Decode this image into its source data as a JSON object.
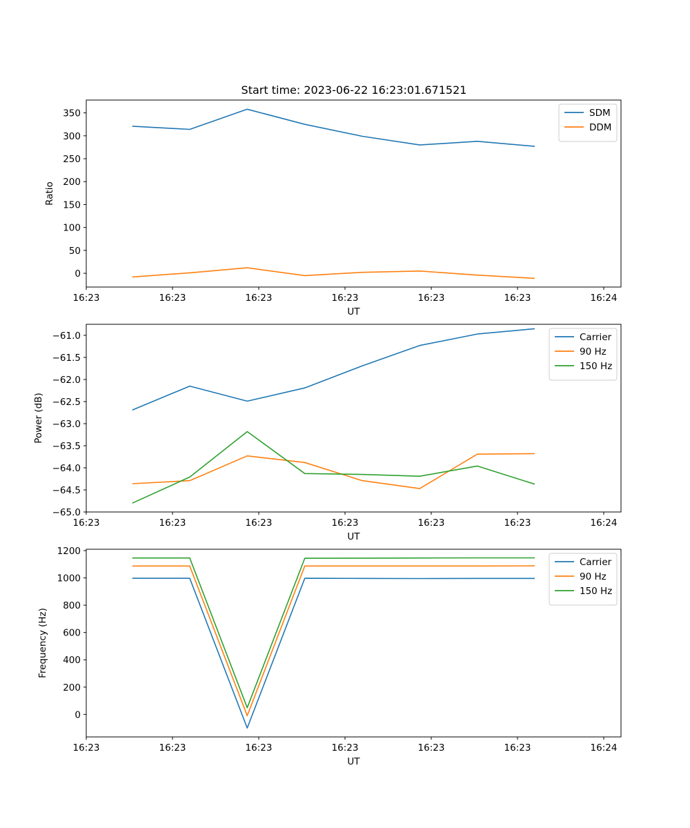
{
  "title": "Start time: 2023-06-22 16:23:01.671521",
  "chart_data": [
    {
      "type": "line",
      "title": "Start time: 2023-06-22 16:23:01.671521",
      "xlabel": "UT",
      "ylabel": "Ratio",
      "x": [
        1,
        2,
        3,
        4,
        5,
        6,
        7,
        8
      ],
      "xlim": [
        0.2,
        9.5
      ],
      "xticks": [
        0.2,
        1.7,
        3.2,
        4.7,
        6.2,
        7.7,
        9.2
      ],
      "xtick_labels": [
        "16:23",
        "16:23",
        "16:23",
        "16:23",
        "16:23",
        "16:23",
        "16:24"
      ],
      "ylim": [
        -30,
        378
      ],
      "yticks": [
        0,
        50,
        100,
        150,
        200,
        250,
        300,
        350
      ],
      "legend": "top-right",
      "series": [
        {
          "name": "SDM",
          "color": "#1f77b4",
          "values": [
            321,
            314,
            358,
            325,
            299,
            280,
            288,
            277
          ]
        },
        {
          "name": "DDM",
          "color": "#ff7f0e",
          "values": [
            -8,
            1,
            12,
            -5,
            2,
            5,
            -4,
            -11
          ]
        }
      ]
    },
    {
      "type": "line",
      "xlabel": "UT",
      "ylabel": "Power (dB)",
      "x": [
        1,
        2,
        3,
        4,
        5,
        6,
        7,
        8
      ],
      "xlim": [
        0.2,
        9.5
      ],
      "xticks": [
        0.2,
        1.7,
        3.2,
        4.7,
        6.2,
        7.7,
        9.2
      ],
      "xtick_labels": [
        "16:23",
        "16:23",
        "16:23",
        "16:23",
        "16:23",
        "16:23",
        "16:24"
      ],
      "ylim": [
        -65.0,
        -60.75
      ],
      "yticks": [
        -65.0,
        -64.5,
        -64.0,
        -63.5,
        -63.0,
        -62.5,
        -62.0,
        -61.5,
        -61.0
      ],
      "ytick_labels": [
        "−65.0",
        "−64.5",
        "−64.0",
        "−63.5",
        "−63.0",
        "−62.5",
        "−62.0",
        "−61.5",
        "−61.0"
      ],
      "legend": "top-right",
      "series": [
        {
          "name": "Carrier",
          "color": "#1f77b4",
          "values": [
            -62.69,
            -62.15,
            -62.49,
            -62.19,
            -61.69,
            -61.23,
            -60.97,
            -60.85
          ]
        },
        {
          "name": "90 Hz",
          "color": "#ff7f0e",
          "values": [
            -64.36,
            -64.29,
            -63.73,
            -63.88,
            -64.29,
            -64.47,
            -63.69,
            -63.68
          ]
        },
        {
          "name": "150 Hz",
          "color": "#2ca02c",
          "values": [
            -64.8,
            -64.21,
            -63.18,
            -64.13,
            -64.15,
            -64.19,
            -63.96,
            -64.37
          ]
        }
      ]
    },
    {
      "type": "line",
      "xlabel": "UT",
      "ylabel": "Frequency (Hz)",
      "x": [
        1,
        2,
        3,
        4,
        5,
        6,
        7,
        8
      ],
      "xlim": [
        0.2,
        9.5
      ],
      "xticks": [
        0.2,
        1.7,
        3.2,
        4.7,
        6.2,
        7.7,
        9.2
      ],
      "xtick_labels": [
        "16:23",
        "16:23",
        "16:23",
        "16:23",
        "16:23",
        "16:23",
        "16:24"
      ],
      "ylim": [
        -165,
        1210
      ],
      "yticks": [
        0,
        200,
        400,
        600,
        800,
        1000,
        1200
      ],
      "legend": "top-right",
      "series": [
        {
          "name": "Carrier",
          "color": "#1f77b4",
          "values": [
            997,
            997,
            -100,
            997,
            996,
            995,
            996,
            996
          ]
        },
        {
          "name": "90 Hz",
          "color": "#ff7f0e",
          "values": [
            1087,
            1087,
            -10,
            1087,
            1087,
            1087,
            1087,
            1088
          ]
        },
        {
          "name": "150 Hz",
          "color": "#2ca02c",
          "values": [
            1146,
            1146,
            49,
            1144,
            1145,
            1146,
            1147,
            1147
          ]
        }
      ]
    }
  ]
}
